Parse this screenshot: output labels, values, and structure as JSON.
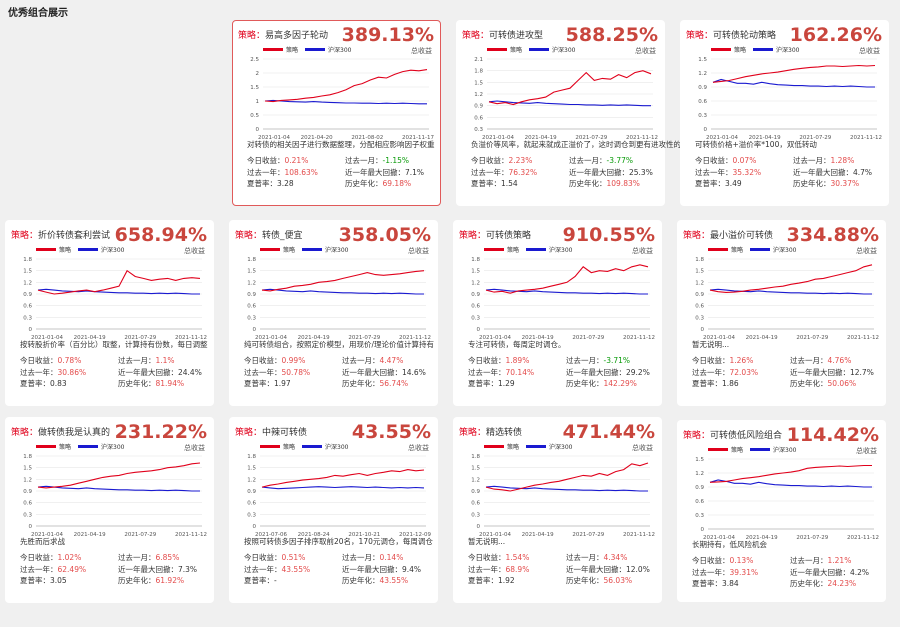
{
  "page_title": "优秀组合展示",
  "labels": {
    "strategy_prefix": "策略：",
    "total_return": "总收益",
    "legend_strategy": "策略",
    "legend_benchmark": "沪深300",
    "today": "今日收益：",
    "month": "过去一月：",
    "year": "过去一年：",
    "drawdown": "近一年最大回撤：",
    "sharpe": "夏普率：",
    "annual": "历史年化："
  },
  "colors": {
    "strategy_line": "#e0001b",
    "benchmark_line": "#1a1ad0",
    "value_red": "#e34b4b",
    "value_green": "#0a9b0a"
  },
  "cards": [
    {
      "name": "易高多因子轮动",
      "total": "389.13%",
      "selected": true,
      "desc": "对转债的相关因子进行数据整理，分配相应影响因子权重",
      "today": "0.21%",
      "month": "-1.15%",
      "month_sign": "neg",
      "year": "108.63%",
      "drawdown": "7.1%",
      "sharpe": "3.28",
      "annual": "69.18%",
      "chart_data": {
        "type": "line",
        "x_ticks": [
          "2021-01-04",
          "2021-04-20",
          "2021-08-02",
          "2021-11-17"
        ],
        "y_ticks": [
          0,
          0.5,
          1,
          1.5,
          2,
          2.5
        ],
        "ylim": [
          0,
          2.5
        ],
        "series": [
          {
            "name": "策略",
            "values": [
              1.0,
              0.98,
              1.02,
              1.04,
              1.06,
              1.1,
              1.13,
              1.18,
              1.22,
              1.3,
              1.4,
              1.55,
              1.62,
              1.75,
              1.85,
              1.82,
              1.95,
              2.05,
              2.1,
              2.08,
              2.12
            ]
          },
          {
            "name": "沪深300",
            "values": [
              1.0,
              1.02,
              1.0,
              0.98,
              0.97,
              0.96,
              0.98,
              0.96,
              0.95,
              0.94,
              0.93,
              0.93,
              0.92,
              0.92,
              0.91,
              0.92,
              0.91,
              0.92,
              0.91,
              0.9,
              0.9
            ]
          }
        ]
      }
    },
    {
      "name": "可转债进攻型",
      "total": "588.25%",
      "selected": false,
      "desc": "负溢价等风率，就起来就成正溢价了，这时调仓到更有进攻性的转债",
      "today": "2.23%",
      "month": "-3.77%",
      "month_sign": "neg",
      "year": "76.32%",
      "drawdown": "25.3%",
      "sharpe": "1.54",
      "annual": "109.83%",
      "chart_data": {
        "type": "line",
        "x_ticks": [
          "2021-01-04",
          "2021-04-19",
          "2021-07-29",
          "2021-11-12"
        ],
        "y_ticks": [
          0.3,
          0.6,
          0.9,
          1.2,
          1.5,
          1.8,
          2.1
        ],
        "ylim": [
          0.3,
          2.1
        ],
        "series": [
          {
            "name": "策略",
            "values": [
              1.0,
              0.95,
              0.98,
              0.93,
              1.0,
              1.05,
              1.08,
              1.12,
              1.25,
              1.3,
              1.35,
              1.55,
              1.75,
              1.55,
              1.6,
              1.58,
              1.7,
              1.62,
              1.75,
              1.8,
              1.72
            ]
          },
          {
            "name": "沪深300",
            "values": [
              1.0,
              1.02,
              1.0,
              0.98,
              0.97,
              0.96,
              0.98,
              0.96,
              0.95,
              0.94,
              0.93,
              0.93,
              0.92,
              0.92,
              0.91,
              0.92,
              0.91,
              0.92,
              0.91,
              0.9,
              0.9
            ]
          }
        ]
      }
    },
    {
      "name": "可转债轮动策略",
      "total": "162.26%",
      "selected": false,
      "desc": "可转债价格+溢价率*100，双低转动",
      "today": "0.07%",
      "month": "1.28%",
      "month_sign": "pos",
      "year": "35.32%",
      "drawdown": "4.7%",
      "sharpe": "3.49",
      "annual": "30.37%",
      "chart_data": {
        "type": "line",
        "x_ticks": [
          "2021-01-04",
          "2021-04-19",
          "2021-07-29",
          "2021-11-12"
        ],
        "y_ticks": [
          0,
          0.3,
          0.6,
          0.9,
          1.2,
          1.5
        ],
        "ylim": [
          0,
          1.5
        ],
        "series": [
          {
            "name": "策略",
            "values": [
              1.0,
              1.02,
              1.04,
              1.08,
              1.12,
              1.15,
              1.18,
              1.2,
              1.22,
              1.25,
              1.28,
              1.3,
              1.32,
              1.33,
              1.35,
              1.35,
              1.34,
              1.35,
              1.36,
              1.35,
              1.36
            ]
          },
          {
            "name": "沪深300",
            "values": [
              1.0,
              1.06,
              1.02,
              0.98,
              0.98,
              0.96,
              1.0,
              0.97,
              0.95,
              0.94,
              0.93,
              0.93,
              0.92,
              0.92,
              0.91,
              0.92,
              0.91,
              0.92,
              0.91,
              0.9,
              0.9
            ]
          }
        ]
      }
    },
    {
      "name": "折价转债套利尝试",
      "total": "658.94%",
      "selected": false,
      "desc": "按转股折价率（百分比）取整，计算持有份数，每日调整",
      "today": "0.78%",
      "month": "1.1%",
      "month_sign": "pos",
      "year": "30.86%",
      "drawdown": "24.4%",
      "sharpe": "0.83",
      "annual": "81.94%",
      "chart_data": {
        "type": "line",
        "x_ticks": [
          "2021-01-04",
          "2021-04-19",
          "2021-07-29",
          "2021-11-12"
        ],
        "y_ticks": [
          0,
          0.3,
          0.6,
          0.9,
          1.2,
          1.5,
          1.8
        ],
        "ylim": [
          0,
          1.8
        ],
        "series": [
          {
            "name": "策略",
            "values": [
              1.0,
              0.95,
              0.9,
              0.92,
              0.95,
              0.98,
              1.0,
              0.96,
              1.0,
              1.05,
              1.1,
              1.5,
              1.35,
              1.3,
              1.25,
              1.28,
              1.3,
              1.25,
              1.3,
              1.32,
              1.3
            ]
          },
          {
            "name": "沪深300",
            "values": [
              1.0,
              1.02,
              1.0,
              0.98,
              0.97,
              0.96,
              0.98,
              0.96,
              0.95,
              0.94,
              0.93,
              0.93,
              0.92,
              0.92,
              0.91,
              0.92,
              0.91,
              0.92,
              0.91,
              0.9,
              0.9
            ]
          }
        ]
      }
    },
    {
      "name": "转债_便宜",
      "total": "358.05%",
      "selected": false,
      "desc": "纯可转债组合，按照定价模型，用现价/理论价值计算持有",
      "today": "0.99%",
      "month": "4.47%",
      "month_sign": "pos",
      "year": "50.78%",
      "drawdown": "14.6%",
      "sharpe": "1.97",
      "annual": "56.74%",
      "chart_data": {
        "type": "line",
        "x_ticks": [
          "2021-01-04",
          "2021-04-19",
          "2021-07-29",
          "2021-11-12"
        ],
        "y_ticks": [
          0,
          0.3,
          0.6,
          0.9,
          1.2,
          1.5,
          1.8
        ],
        "ylim": [
          0,
          1.8
        ],
        "series": [
          {
            "name": "策略",
            "values": [
              1.0,
              0.98,
              1.02,
              1.05,
              1.1,
              1.12,
              1.15,
              1.2,
              1.22,
              1.25,
              1.3,
              1.35,
              1.4,
              1.45,
              1.4,
              1.38,
              1.4,
              1.42,
              1.45,
              1.48,
              1.5
            ]
          },
          {
            "name": "沪深300",
            "values": [
              1.0,
              1.02,
              1.0,
              0.98,
              0.97,
              0.96,
              0.98,
              0.96,
              0.95,
              0.94,
              0.93,
              0.93,
              0.92,
              0.92,
              0.91,
              0.92,
              0.91,
              0.92,
              0.91,
              0.9,
              0.9
            ]
          }
        ]
      }
    },
    {
      "name": "可转债策略",
      "total": "910.55%",
      "selected": false,
      "desc": "专注可转债，每周定时调仓。",
      "today": "1.89%",
      "month": "-3.71%",
      "month_sign": "neg",
      "year": "70.14%",
      "drawdown": "29.2%",
      "sharpe": "1.29",
      "annual": "142.29%",
      "chart_data": {
        "type": "line",
        "x_ticks": [
          "2021-01-04",
          "2021-04-19",
          "2021-07-29",
          "2021-11-12"
        ],
        "y_ticks": [
          0,
          0.3,
          0.6,
          0.9,
          1.2,
          1.5,
          1.8
        ],
        "ylim": [
          0,
          1.8
        ],
        "series": [
          {
            "name": "策略",
            "values": [
              1.0,
              0.95,
              0.97,
              0.92,
              0.98,
              1.0,
              1.02,
              1.05,
              1.1,
              1.15,
              1.2,
              1.35,
              1.6,
              1.45,
              1.5,
              1.48,
              1.55,
              1.5,
              1.6,
              1.65,
              1.6
            ]
          },
          {
            "name": "沪深300",
            "values": [
              1.0,
              1.02,
              1.0,
              0.98,
              0.97,
              0.96,
              0.98,
              0.96,
              0.95,
              0.94,
              0.93,
              0.93,
              0.92,
              0.92,
              0.91,
              0.92,
              0.91,
              0.92,
              0.91,
              0.9,
              0.9
            ]
          }
        ]
      }
    },
    {
      "name": "最小溢价可转债",
      "total": "334.88%",
      "selected": false,
      "desc": "暂无说明...",
      "today": "1.26%",
      "month": "4.76%",
      "month_sign": "pos",
      "year": "72.03%",
      "drawdown": "12.7%",
      "sharpe": "1.86",
      "annual": "50.06%",
      "chart_data": {
        "type": "line",
        "x_ticks": [
          "2021-01-04",
          "2021-04-19",
          "2021-07-29",
          "2021-11-12"
        ],
        "y_ticks": [
          0,
          0.3,
          0.6,
          0.9,
          1.2,
          1.5,
          1.8
        ],
        "ylim": [
          0,
          1.8
        ],
        "series": [
          {
            "name": "策略",
            "values": [
              1.0,
              0.96,
              0.94,
              0.95,
              0.97,
              1.0,
              1.02,
              1.05,
              1.08,
              1.1,
              1.15,
              1.18,
              1.22,
              1.28,
              1.3,
              1.35,
              1.4,
              1.45,
              1.5,
              1.6,
              1.65
            ]
          },
          {
            "name": "沪深300",
            "values": [
              1.0,
              1.02,
              1.0,
              0.98,
              0.97,
              0.96,
              0.98,
              0.96,
              0.95,
              0.94,
              0.93,
              0.93,
              0.92,
              0.92,
              0.91,
              0.92,
              0.91,
              0.92,
              0.91,
              0.9,
              0.9
            ]
          }
        ]
      }
    },
    {
      "name": "做转债我是认真的",
      "total": "231.22%",
      "selected": false,
      "desc": "先胜而后求战",
      "today": "1.02%",
      "month": "6.85%",
      "month_sign": "pos",
      "year": "62.49%",
      "drawdown": "7.3%",
      "sharpe": "3.05",
      "annual": "61.92%",
      "chart_data": {
        "type": "line",
        "x_ticks": [
          "2021-01-04",
          "2021-04-19",
          "2021-07-29",
          "2021-11-12"
        ],
        "y_ticks": [
          0,
          0.3,
          0.6,
          0.9,
          1.2,
          1.5,
          1.8
        ],
        "ylim": [
          0,
          1.8
        ],
        "series": [
          {
            "name": "策略",
            "values": [
              1.0,
              0.98,
              1.0,
              1.02,
              1.05,
              1.1,
              1.15,
              1.2,
              1.25,
              1.28,
              1.3,
              1.35,
              1.38,
              1.4,
              1.42,
              1.45,
              1.5,
              1.52,
              1.55,
              1.6,
              1.62
            ]
          },
          {
            "name": "沪深300",
            "values": [
              1.0,
              1.02,
              1.0,
              0.98,
              0.97,
              0.96,
              0.98,
              0.96,
              0.95,
              0.94,
              0.93,
              0.93,
              0.92,
              0.92,
              0.91,
              0.92,
              0.91,
              0.92,
              0.91,
              0.9,
              0.9
            ]
          }
        ]
      }
    },
    {
      "name": "中辣可转债",
      "total": "43.55%",
      "selected": false,
      "desc": "按照可转债多因子排序取前20名，170元调仓，每周调仓",
      "today": "0.51%",
      "month": "0.14%",
      "month_sign": "pos",
      "year": "43.55%",
      "drawdown": "9.4%",
      "sharpe": "-",
      "annual": "43.55%",
      "chart_data": {
        "type": "line",
        "x_ticks": [
          "2021-07-06",
          "2021-08-24",
          "2021-10-21",
          "2021-12-09"
        ],
        "y_ticks": [
          0,
          0.3,
          0.6,
          0.9,
          1.2,
          1.5,
          1.8
        ],
        "ylim": [
          0,
          1.8
        ],
        "series": [
          {
            "name": "策略",
            "values": [
              1.0,
              1.05,
              1.08,
              1.12,
              1.15,
              1.18,
              1.2,
              1.22,
              1.25,
              1.3,
              1.28,
              1.32,
              1.35,
              1.3,
              1.35,
              1.38,
              1.42,
              1.4,
              1.45,
              1.42,
              1.44
            ]
          },
          {
            "name": "沪深300",
            "values": [
              1.0,
              0.98,
              0.96,
              0.97,
              0.98,
              0.99,
              1.0,
              1.01,
              1.0,
              0.99,
              1.0,
              1.01,
              1.0,
              0.99,
              1.0,
              0.99,
              0.98,
              0.99,
              0.98,
              0.99,
              0.98
            ]
          }
        ]
      }
    },
    {
      "name": "精选转债",
      "total": "471.44%",
      "selected": false,
      "desc": "暂无说明...",
      "today": "1.54%",
      "month": "4.34%",
      "month_sign": "pos",
      "year": "68.9%",
      "drawdown": "12.0%",
      "sharpe": "1.92",
      "annual": "56.03%",
      "chart_data": {
        "type": "line",
        "x_ticks": [
          "2021-01-04",
          "2021-04-19",
          "2021-07-29",
          "2021-11-12"
        ],
        "y_ticks": [
          0,
          0.3,
          0.6,
          0.9,
          1.2,
          1.5,
          1.8
        ],
        "ylim": [
          0,
          1.8
        ],
        "series": [
          {
            "name": "策略",
            "values": [
              1.0,
              0.95,
              0.93,
              0.9,
              0.95,
              1.0,
              1.05,
              1.08,
              1.12,
              1.15,
              1.2,
              1.25,
              1.3,
              1.28,
              1.35,
              1.3,
              1.4,
              1.45,
              1.6,
              1.55,
              1.62
            ]
          },
          {
            "name": "沪深300",
            "values": [
              1.0,
              1.02,
              1.0,
              0.98,
              0.97,
              0.96,
              0.98,
              0.96,
              0.95,
              0.94,
              0.93,
              0.93,
              0.92,
              0.92,
              0.91,
              0.92,
              0.91,
              0.92,
              0.91,
              0.9,
              0.9
            ]
          }
        ]
      }
    },
    {
      "name": "可转债低风险组合",
      "total": "114.42%",
      "selected": false,
      "desc": "长期持有，低风险机会",
      "today": "0.13%",
      "month": "1.21%",
      "month_sign": "pos",
      "year": "39.31%",
      "drawdown": "4.2%",
      "sharpe": "3.84",
      "annual": "24.23%",
      "chart_data": {
        "type": "line",
        "x_ticks": [
          "2021-01-04",
          "2021-04-19",
          "2021-07-29",
          "2021-11-12"
        ],
        "y_ticks": [
          0,
          0.3,
          0.6,
          0.9,
          1.2,
          1.5
        ],
        "ylim": [
          0,
          1.5
        ],
        "series": [
          {
            "name": "策略",
            "values": [
              1.0,
              1.01,
              1.02,
              1.05,
              1.08,
              1.1,
              1.12,
              1.15,
              1.18,
              1.2,
              1.22,
              1.25,
              1.3,
              1.32,
              1.33,
              1.34,
              1.35,
              1.34,
              1.35,
              1.36,
              1.36
            ]
          },
          {
            "name": "沪深300",
            "values": [
              1.0,
              1.05,
              1.02,
              0.98,
              0.98,
              0.96,
              1.0,
              0.97,
              0.95,
              0.94,
              0.93,
              0.93,
              0.92,
              0.92,
              0.91,
              0.92,
              0.91,
              0.92,
              0.91,
              0.9,
              0.9
            ]
          }
        ]
      }
    }
  ]
}
